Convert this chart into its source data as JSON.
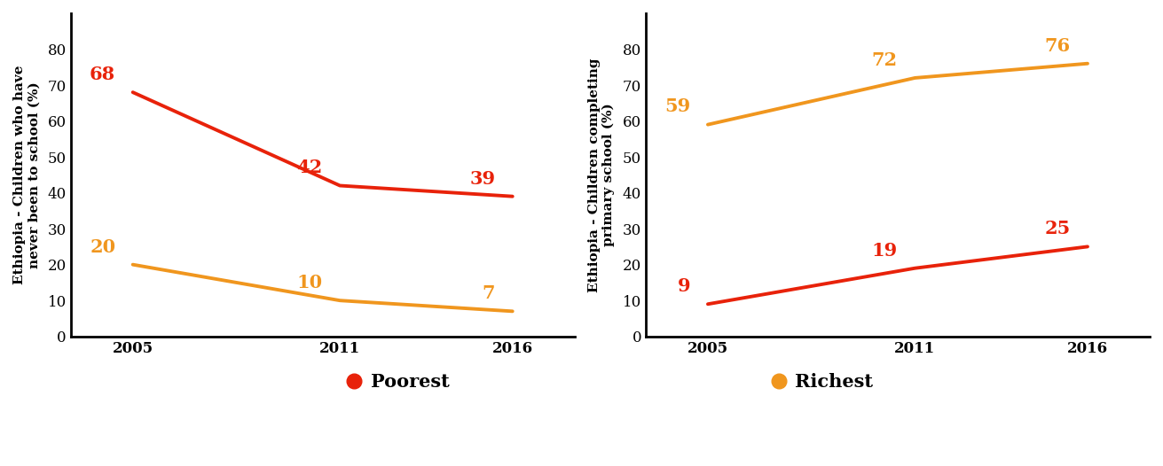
{
  "years": [
    2005,
    2011,
    2016
  ],
  "chart1": {
    "ylabel": "Ethiopia - Children who have\nnever been to school (%)",
    "poorest": [
      68,
      42,
      39
    ],
    "richest": [
      20,
      10,
      7
    ],
    "ylim": [
      0,
      90
    ],
    "yticks": [
      0,
      10,
      20,
      30,
      40,
      50,
      60,
      70,
      80
    ]
  },
  "chart2": {
    "ylabel": "Ethiopia - Children completing\nprimary school (%)",
    "poorest": [
      9,
      19,
      25
    ],
    "richest": [
      59,
      72,
      76
    ],
    "ylim": [
      0,
      90
    ],
    "yticks": [
      0,
      10,
      20,
      30,
      40,
      50,
      60,
      70,
      80
    ]
  },
  "poorest_color": "#e8220a",
  "richest_color": "#f0961e",
  "legend_poorest_label": "Poorest",
  "legend_richest_label": "Richest",
  "line_width": 2.8,
  "label_fontsize": 15,
  "tick_fontsize": 12,
  "ylabel_fontsize": 11,
  "legend_fontsize": 15,
  "background_color": "#ffffff"
}
